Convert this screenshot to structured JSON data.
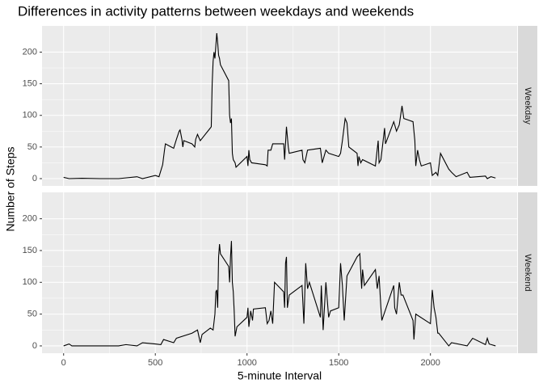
{
  "chart_data": {
    "type": "line",
    "facet": true,
    "title": "Differences in activity patterns between weekdays and weekends",
    "x_label": "5-minute Interval",
    "y_label": "Number of Steps",
    "xlim": [
      -117.75,
      2472.75
    ],
    "xticks": [
      0,
      500,
      1000,
      1500,
      2000
    ],
    "ylim": [
      -11.5,
      241.5
    ],
    "yticks": [
      0,
      50,
      100,
      150,
      200
    ],
    "grid": true,
    "series": [
      {
        "name": "Weekday",
        "color": "#000000",
        "x": [
          0,
          30,
          100,
          200,
          300,
          400,
          430,
          500,
          520,
          540,
          550,
          555,
          600,
          615,
          630,
          635,
          645,
          650,
          655,
          700,
          715,
          720,
          730,
          745,
          800,
          805,
          810,
          815,
          820,
          825,
          830,
          835,
          840,
          845,
          850,
          855,
          900,
          905,
          910,
          915,
          920,
          925,
          935,
          940,
          1000,
          1005,
          1010,
          1015,
          1025,
          1100,
          1110,
          1115,
          1130,
          1140,
          1200,
          1205,
          1215,
          1225,
          1230,
          1300,
          1305,
          1315,
          1330,
          1400,
          1410,
          1430,
          1445,
          1500,
          1510,
          1520,
          1535,
          1545,
          1555,
          1600,
          1605,
          1610,
          1620,
          1630,
          1700,
          1715,
          1720,
          1730,
          1750,
          1755,
          1800,
          1815,
          1830,
          1845,
          1855,
          1905,
          1915,
          1920,
          1930,
          1940,
          1950,
          2000,
          2010,
          2030,
          2040,
          2055,
          2100,
          2115,
          2140,
          2200,
          2215,
          2300,
          2310,
          2330,
          2355
        ],
        "values": [
          2,
          0,
          0.5,
          0,
          0,
          3,
          0,
          5,
          3,
          22,
          45,
          55,
          48,
          62,
          75,
          77,
          62,
          50,
          60,
          55,
          50,
          62,
          70,
          60,
          80,
          82,
          150,
          185,
          200,
          190,
          210,
          230,
          215,
          195,
          190,
          180,
          155,
          100,
          88,
          95,
          40,
          30,
          25,
          18,
          35,
          20,
          45,
          30,
          25,
          22,
          20,
          45,
          45,
          55,
          55,
          30,
          82,
          50,
          40,
          45,
          30,
          25,
          45,
          48,
          25,
          45,
          40,
          35,
          40,
          60,
          95,
          88,
          50,
          40,
          20,
          35,
          25,
          30,
          20,
          60,
          25,
          30,
          80,
          55,
          90,
          75,
          85,
          115,
          95,
          90,
          60,
          20,
          45,
          30,
          20,
          25,
          5,
          10,
          5,
          40,
          15,
          10,
          3,
          10,
          2,
          4,
          0,
          3,
          1
        ]
      },
      {
        "name": "Weekend",
        "color": "#000000",
        "x": [
          0,
          30,
          45,
          300,
          340,
          400,
          430,
          500,
          530,
          545,
          600,
          615,
          700,
          730,
          745,
          755,
          800,
          815,
          825,
          830,
          835,
          840,
          845,
          850,
          855,
          900,
          905,
          910,
          915,
          920,
          925,
          930,
          935,
          945,
          1000,
          1005,
          1010,
          1020,
          1030,
          1035,
          1100,
          1110,
          1120,
          1130,
          1140,
          1150,
          1200,
          1205,
          1210,
          1215,
          1220,
          1230,
          1300,
          1310,
          1320,
          1330,
          1340,
          1400,
          1405,
          1415,
          1425,
          1430,
          1445,
          1455,
          1500,
          1510,
          1520,
          1530,
          1545,
          1600,
          1615,
          1625,
          1630,
          1640,
          1700,
          1710,
          1720,
          1730,
          1735,
          1800,
          1805,
          1815,
          1830,
          1840,
          1850,
          1905,
          1910,
          1920,
          2000,
          2010,
          2020,
          2030,
          2040,
          2045,
          2100,
          2115,
          2200,
          2230,
          2300,
          2310,
          2320,
          2355
        ],
        "values": [
          0,
          3,
          0,
          0,
          2,
          0,
          5,
          3,
          2,
          10,
          5,
          12,
          20,
          25,
          5,
          18,
          28,
          25,
          50,
          85,
          88,
          60,
          140,
          160,
          145,
          125,
          100,
          140,
          165,
          100,
          85,
          55,
          15,
          30,
          45,
          60,
          30,
          55,
          40,
          58,
          60,
          35,
          40,
          55,
          35,
          100,
          85,
          60,
          130,
          140,
          60,
          80,
          95,
          35,
          130,
          90,
          100,
          45,
          95,
          25,
          75,
          100,
          45,
          55,
          60,
          130,
          95,
          40,
          110,
          140,
          145,
          90,
          120,
          95,
          120,
          90,
          110,
          60,
          40,
          95,
          60,
          50,
          100,
          80,
          80,
          40,
          10,
          50,
          35,
          88,
          60,
          45,
          20,
          20,
          0,
          5,
          0,
          12,
          2,
          12,
          3,
          0
        ]
      }
    ]
  }
}
